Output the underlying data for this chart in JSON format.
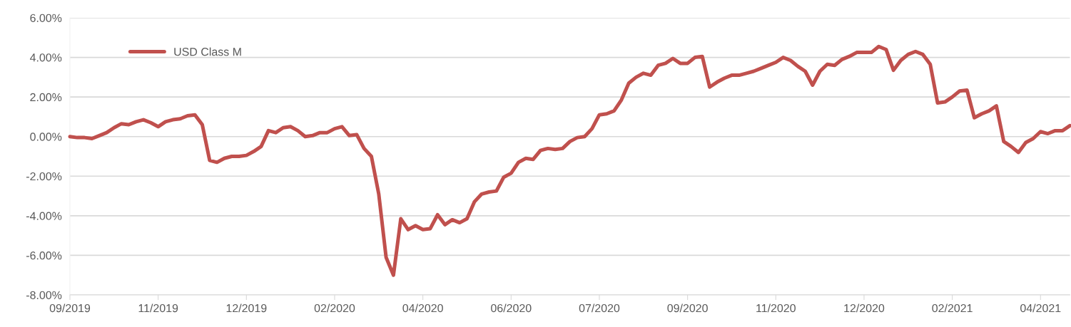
{
  "chart_data": {
    "type": "line",
    "categories": [
      "09/2019",
      null,
      null,
      null,
      null,
      null,
      null,
      null,
      null,
      null,
      null,
      null,
      "11/2019",
      null,
      null,
      null,
      null,
      null,
      null,
      null,
      null,
      null,
      null,
      null,
      "12/2019",
      null,
      null,
      null,
      null,
      null,
      null,
      null,
      null,
      null,
      null,
      null,
      "02/2020",
      null,
      null,
      null,
      null,
      null,
      null,
      null,
      null,
      null,
      null,
      null,
      "04/2020",
      null,
      null,
      null,
      null,
      null,
      null,
      null,
      null,
      null,
      null,
      null,
      "06/2020",
      null,
      null,
      null,
      null,
      null,
      null,
      null,
      null,
      null,
      null,
      null,
      "07/2020",
      null,
      null,
      null,
      null,
      null,
      null,
      null,
      null,
      null,
      null,
      null,
      "09/2020",
      null,
      null,
      null,
      null,
      null,
      null,
      null,
      null,
      null,
      null,
      null,
      "11/2020",
      null,
      null,
      null,
      null,
      null,
      null,
      null,
      null,
      null,
      null,
      null,
      "12/2020",
      null,
      null,
      null,
      null,
      null,
      null,
      null,
      null,
      null,
      null,
      null,
      "02/2021",
      null,
      null,
      null,
      null,
      null,
      null,
      null,
      null,
      null,
      null,
      null,
      "04/2021",
      null,
      null,
      null,
      null
    ],
    "series": [
      {
        "name": "USD Class M",
        "color": "#c0504d",
        "values": [
          0.0,
          -0.05,
          -0.05,
          -0.1,
          0.05,
          0.2,
          0.45,
          0.65,
          0.6,
          0.75,
          0.85,
          0.7,
          0.5,
          0.75,
          0.85,
          0.9,
          1.05,
          1.1,
          0.6,
          -1.2,
          -1.3,
          -1.1,
          -1.0,
          -1.0,
          -0.95,
          -0.75,
          -0.5,
          0.3,
          0.2,
          0.45,
          0.5,
          0.3,
          0.0,
          0.05,
          0.2,
          0.2,
          0.4,
          0.5,
          0.05,
          0.1,
          -0.6,
          -1.0,
          -2.9,
          -6.1,
          -7.0,
          -4.15,
          -4.7,
          -4.5,
          -4.7,
          -4.65,
          -3.95,
          -4.45,
          -4.2,
          -4.35,
          -4.15,
          -3.3,
          -2.9,
          -2.8,
          -2.75,
          -2.05,
          -1.85,
          -1.3,
          -1.1,
          -1.15,
          -0.7,
          -0.6,
          -0.65,
          -0.6,
          -0.25,
          -0.05,
          0.0,
          0.4,
          1.1,
          1.15,
          1.3,
          1.85,
          2.7,
          3.0,
          3.2,
          3.1,
          3.6,
          3.7,
          3.95,
          3.7,
          3.7,
          4.0,
          4.05,
          2.5,
          2.75,
          2.95,
          3.1,
          3.1,
          3.2,
          3.3,
          3.45,
          3.6,
          3.75,
          4.0,
          3.85,
          3.55,
          3.3,
          2.6,
          3.3,
          3.65,
          3.6,
          3.9,
          4.05,
          4.25,
          4.25,
          4.25,
          4.55,
          4.4,
          3.35,
          3.85,
          4.15,
          4.3,
          4.15,
          3.65,
          1.7,
          1.75,
          2.0,
          2.3,
          2.35,
          0.95,
          1.15,
          1.3,
          1.55,
          -0.25,
          -0.5,
          -0.8,
          -0.3,
          -0.1,
          0.25,
          0.15,
          0.3,
          0.3,
          0.55
        ]
      }
    ],
    "ylim": [
      -8,
      6
    ],
    "yticks": [
      {
        "value": -8,
        "label": "-8.00%"
      },
      {
        "value": -6,
        "label": "-6.00%"
      },
      {
        "value": -4,
        "label": "-4.00%"
      },
      {
        "value": -2,
        "label": "-2.00%"
      },
      {
        "value": 0,
        "label": "0.00%"
      },
      {
        "value": 2,
        "label": "2.00%"
      },
      {
        "value": 4,
        "label": "4.00%"
      },
      {
        "value": 6,
        "label": "6.00%"
      }
    ],
    "grid": "y",
    "legend": "top left",
    "marker": "none",
    "line_style": "solid"
  }
}
